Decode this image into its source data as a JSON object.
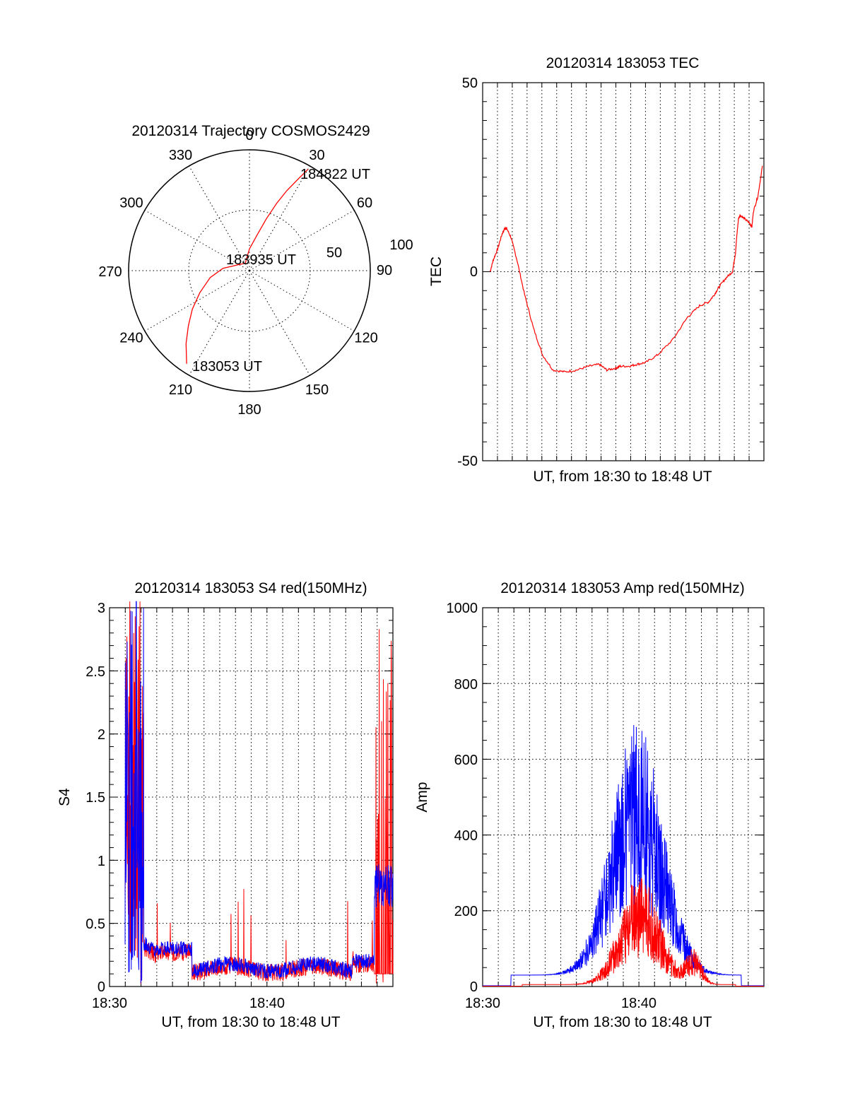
{
  "chart_data": [
    {
      "type": "polar",
      "title": "20120314 Trajectory COSMOS2429",
      "angle_labels": [
        "0",
        "30",
        "60",
        "90",
        "120",
        "150",
        "180",
        "210",
        "240",
        "270",
        "300",
        "330"
      ],
      "radius_labels": [
        "50",
        "100"
      ],
      "rmax": 100,
      "annotations": {
        "start": "183053 UT",
        "mid": "183935 UT",
        "end": "184822 UT"
      },
      "series": [
        {
          "name": "trajectory",
          "color": "#ff0000",
          "points": [
            [
              214,
              93
            ],
            [
              221,
              80
            ],
            [
              228,
              68
            ],
            [
              236,
              57
            ],
            [
              246,
              45
            ],
            [
              260,
              33
            ],
            [
              275,
              22
            ],
            [
              300,
              10
            ],
            [
              330,
              7
            ],
            [
              0,
              18
            ],
            [
              12,
              30
            ],
            [
              18,
              45
            ],
            [
              22,
              60
            ],
            [
              25,
              73
            ],
            [
              28,
              86
            ],
            [
              30,
              97
            ]
          ]
        }
      ]
    },
    {
      "type": "line",
      "title": "20120314 183053 TEC",
      "xlabel": "UT, from 18:30 to 18:48 UT",
      "ylabel": "TEC",
      "xlim": [
        -0.5,
        18.3
      ],
      "ylim": [
        -50,
        50
      ],
      "yticks": [
        "-50",
        "0",
        "50"
      ],
      "xticks": [],
      "series": [
        {
          "name": "TEC",
          "color": "#ff0000",
          "x": [
            0,
            0.2,
            0.5,
            0.8,
            1.0,
            1.1,
            1.4,
            1.8,
            2.3,
            2.9,
            3.5,
            4.2,
            5.0,
            5.8,
            6.6,
            7.3,
            7.8,
            8.4,
            8.7,
            9.3,
            9.8,
            10.4,
            11.2,
            12.2,
            13.2,
            14.0,
            14.6,
            15.0,
            15.3,
            15.8,
            16.2,
            16.4,
            16.5,
            16.6,
            16.7,
            17.0,
            17.3,
            17.5,
            17.6,
            17.9,
            18.2
          ],
          "y": [
            0,
            3,
            6,
            10,
            11.5,
            11.5,
            9,
            3,
            -6,
            -15,
            -22,
            -26,
            -26.5,
            -26,
            -25,
            -24.5,
            -26,
            -25.5,
            -25,
            -25,
            -24.5,
            -24,
            -22,
            -18,
            -12,
            -9,
            -8,
            -6,
            -4,
            -1.5,
            0,
            5,
            10,
            14,
            15,
            14,
            13,
            12,
            16,
            20,
            28
          ]
        }
      ]
    },
    {
      "type": "line",
      "title": "20120314 183053 S4 red(150MHz)",
      "xlabel": "UT, from 18:30 to 18:48 UT",
      "ylabel": "S4",
      "xlim": [
        18.5,
        18.8
      ],
      "ylim": [
        0,
        3
      ],
      "yticks": [
        "0",
        "0.5",
        "1",
        "1.5",
        "2",
        "2.5",
        "3"
      ],
      "xticks": [
        "18:30",
        "18:40"
      ],
      "series": [
        {
          "name": "red",
          "color": "#ff0000",
          "x": [],
          "y": []
        },
        {
          "name": "blue",
          "color": "#0000ff",
          "x": [],
          "y": []
        }
      ]
    },
    {
      "type": "line",
      "title": "20120314 183053 Amp red(150MHz)",
      "xlabel": "UT, from 18:30 to 18:48 UT",
      "ylabel": "Amp",
      "xlim": [
        18.5,
        18.8
      ],
      "ylim": [
        0,
        1000
      ],
      "yticks": [
        "0",
        "200",
        "400",
        "600",
        "800",
        "1000"
      ],
      "xticks": [
        "18:30",
        "18:40"
      ],
      "series": [
        {
          "name": "red",
          "color": "#ff0000",
          "x": [],
          "y": []
        },
        {
          "name": "blue",
          "color": "#0000ff",
          "x": [],
          "y": []
        }
      ]
    }
  ]
}
